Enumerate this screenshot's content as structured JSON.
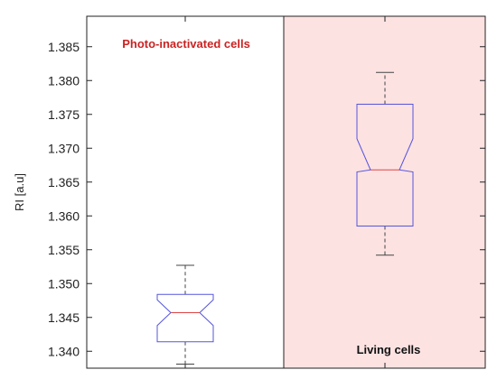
{
  "chart_data": {
    "type": "box",
    "ylabel": "RI [a.u]",
    "ylim": [
      1.3375,
      1.3895
    ],
    "yticks": [
      "1.340",
      "1.345",
      "1.350",
      "1.355",
      "1.360",
      "1.365",
      "1.370",
      "1.375",
      "1.380",
      "1.385"
    ],
    "annotations": [
      {
        "text": "Photo-inactivated cells",
        "color": "#cc2222"
      },
      {
        "text": "Living cells",
        "color": "#111111"
      }
    ],
    "boxes": [
      {
        "category": "Photo-inactivated cells",
        "whisker_low": 1.3381,
        "q1": 1.3414,
        "notch_low": 1.3438,
        "median": 1.3457,
        "notch_high": 1.3476,
        "q3": 1.3484,
        "whisker_high": 1.3527
      },
      {
        "category": "Living cells",
        "whisker_low": 1.3542,
        "q1": 1.3585,
        "notch_low": 1.3665,
        "median": 1.3668,
        "notch_high": 1.3714,
        "q3": 1.3765,
        "whisker_high": 1.3812
      }
    ],
    "colors": {
      "box": "#5555dd",
      "median": "#dd4444",
      "whisker": "#444444",
      "living_background": "#fde2e2",
      "axis": "#222222"
    },
    "grid": false
  }
}
